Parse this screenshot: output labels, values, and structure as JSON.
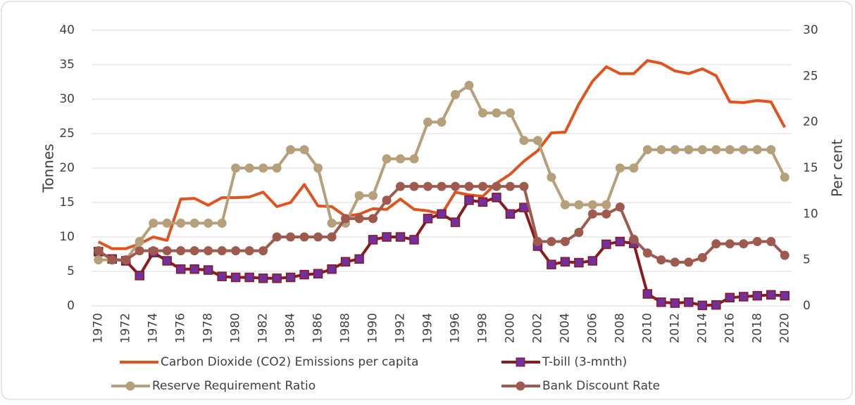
{
  "chart_data": {
    "type": "line",
    "categories": [
      "1970",
      null,
      "1972",
      null,
      "1974",
      null,
      "1976",
      null,
      "1978",
      null,
      "1980",
      null,
      "1982",
      null,
      "1984",
      null,
      "1986",
      null,
      "1988",
      null,
      "1990",
      null,
      "1992",
      null,
      "1994",
      null,
      "1996",
      null,
      "1998",
      null,
      "2000",
      null,
      "2002",
      null,
      "2004",
      null,
      "2006",
      null,
      "2008",
      null,
      "2010",
      null,
      "2012",
      null,
      "2014",
      null,
      "2016",
      null,
      "2018",
      null,
      "2020"
    ],
    "ylabel": "Tonnes",
    "y2label": "Per cent",
    "ylim": [
      0,
      40
    ],
    "yticks": [
      0,
      5,
      10,
      15,
      20,
      25,
      30,
      35,
      40
    ],
    "y2lim": [
      0,
      30
    ],
    "y2ticks": [
      0,
      5,
      10,
      15,
      20,
      25,
      30
    ],
    "grid": true,
    "legend": "bottom",
    "series": [
      {
        "name": "Carbon Dioxide (CO2) Emissions per capita",
        "color": "#e0531f",
        "marker": null,
        "values": [
          9.3,
          8.3,
          8.3,
          9.0,
          10.0,
          9.5,
          15.5,
          15.6,
          14.6,
          15.7,
          15.7,
          15.8,
          16.5,
          14.4,
          15.0,
          17.6,
          14.5,
          14.4,
          13.0,
          13.3,
          14.1,
          14.0,
          15.5,
          14.0,
          13.8,
          13.3,
          16.5,
          16.1,
          15.9,
          17.8,
          19.1,
          21.0,
          22.5,
          25.1,
          25.2,
          29.3,
          32.6,
          34.7,
          33.7,
          33.7,
          35.6,
          35.2,
          34.1,
          33.7,
          34.4,
          33.4,
          29.6,
          29.5,
          29.8,
          29.6,
          25.9
        ]
      },
      {
        "name": "T-bill (3-mnth)",
        "color": "#8b1a1a",
        "marker": "square",
        "marker_color": "#7030a0",
        "axis": "y2",
        "values": [
          5.9,
          5.1,
          4.9,
          3.3,
          5.8,
          4.9,
          4.0,
          4.0,
          3.9,
          3.2,
          3.1,
          3.1,
          3.0,
          3.0,
          3.1,
          3.4,
          3.5,
          4.0,
          4.8,
          5.1,
          7.2,
          7.5,
          7.5,
          7.2,
          9.5,
          10.0,
          9.1,
          11.5,
          11.3,
          11.8,
          10.0,
          10.7,
          6.5,
          4.5,
          4.8,
          4.7,
          4.9,
          6.7,
          7.0,
          6.8,
          1.3,
          0.4,
          0.3,
          0.4,
          0.05,
          0.1,
          0.9,
          1.0,
          1.1,
          1.2,
          1.1
        ]
      },
      {
        "name": "Reserve Requirement Ratio",
        "color": "#b5a07a",
        "marker": "circle",
        "marker_color": "#b5a07a",
        "axis": "y2",
        "values": [
          5,
          5,
          5,
          7,
          9,
          9,
          9,
          9,
          9,
          9,
          15,
          15,
          15,
          15,
          17,
          17,
          15,
          9,
          9,
          12,
          12,
          16,
          16,
          16,
          20,
          20,
          23,
          24,
          21,
          21,
          21,
          18,
          18,
          14,
          11,
          11,
          11,
          11,
          15,
          15,
          17,
          17,
          17,
          17,
          17,
          17,
          17,
          17,
          17,
          17,
          14
        ]
      },
      {
        "name": "Bank Discount Rate",
        "color": "#9e5a4e",
        "marker": "circle",
        "marker_color": "#9e5a4e",
        "axis": "y2",
        "values": [
          6,
          5,
          5,
          6,
          6,
          6,
          6,
          6,
          6,
          6,
          6,
          6,
          6,
          7.5,
          7.5,
          7.5,
          7.5,
          7.5,
          9.5,
          9.5,
          9.5,
          11.5,
          13,
          13,
          13,
          13,
          13,
          13,
          13,
          13,
          13,
          13,
          7,
          7,
          7,
          8,
          10,
          10,
          10.75,
          7.25,
          5.75,
          5,
          4.75,
          4.75,
          5.25,
          6.75,
          6.75,
          6.75,
          7,
          7,
          5.5
        ]
      }
    ]
  }
}
